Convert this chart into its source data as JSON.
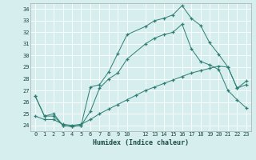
{
  "xlabel": "Humidex (Indice chaleur)",
  "ylabel": "",
  "xlim": [
    -0.5,
    23.5
  ],
  "ylim": [
    23.5,
    34.5
  ],
  "yticks": [
    24,
    25,
    26,
    27,
    28,
    29,
    30,
    31,
    32,
    33,
    34
  ],
  "xticks": [
    0,
    1,
    2,
    3,
    4,
    5,
    6,
    7,
    8,
    9,
    10,
    12,
    13,
    14,
    15,
    16,
    17,
    18,
    19,
    20,
    21,
    22,
    23
  ],
  "line_color": "#2e7d72",
  "bg_color": "#d6eeee",
  "grid_color": "#ffffff",
  "lines": [
    {
      "x": [
        0,
        1,
        2,
        3,
        4,
        5,
        6,
        7,
        8,
        9,
        10,
        12,
        13,
        14,
        15,
        16,
        17,
        18,
        19,
        20,
        21,
        22,
        23
      ],
      "y": [
        26.5,
        24.8,
        24.8,
        24.0,
        23.9,
        24.0,
        27.3,
        27.5,
        28.6,
        30.2,
        31.8,
        32.5,
        33.0,
        33.2,
        33.5,
        34.3,
        33.2,
        32.6,
        31.1,
        30.1,
        29.0,
        27.2,
        27.5
      ]
    },
    {
      "x": [
        0,
        1,
        2,
        3,
        4,
        5,
        6,
        7,
        8,
        9,
        10,
        12,
        13,
        14,
        15,
        16,
        17,
        18,
        19,
        20,
        21,
        22,
        23
      ],
      "y": [
        26.5,
        24.8,
        25.0,
        24.0,
        23.9,
        24.0,
        25.2,
        27.2,
        28.0,
        28.5,
        29.7,
        31.0,
        31.5,
        31.8,
        32.0,
        32.7,
        30.6,
        29.5,
        29.2,
        28.8,
        27.0,
        26.2,
        25.5
      ]
    },
    {
      "x": [
        0,
        1,
        2,
        3,
        4,
        5,
        6,
        7,
        8,
        9,
        10,
        11,
        12,
        13,
        14,
        15,
        16,
        17,
        18,
        19,
        20,
        21,
        22,
        23
      ],
      "y": [
        24.8,
        24.5,
        24.5,
        24.1,
        24.0,
        24.1,
        24.5,
        25.0,
        25.4,
        25.8,
        26.2,
        26.6,
        27.0,
        27.3,
        27.6,
        27.9,
        28.2,
        28.5,
        28.7,
        28.9,
        29.1,
        29.0,
        27.2,
        27.8
      ]
    }
  ]
}
